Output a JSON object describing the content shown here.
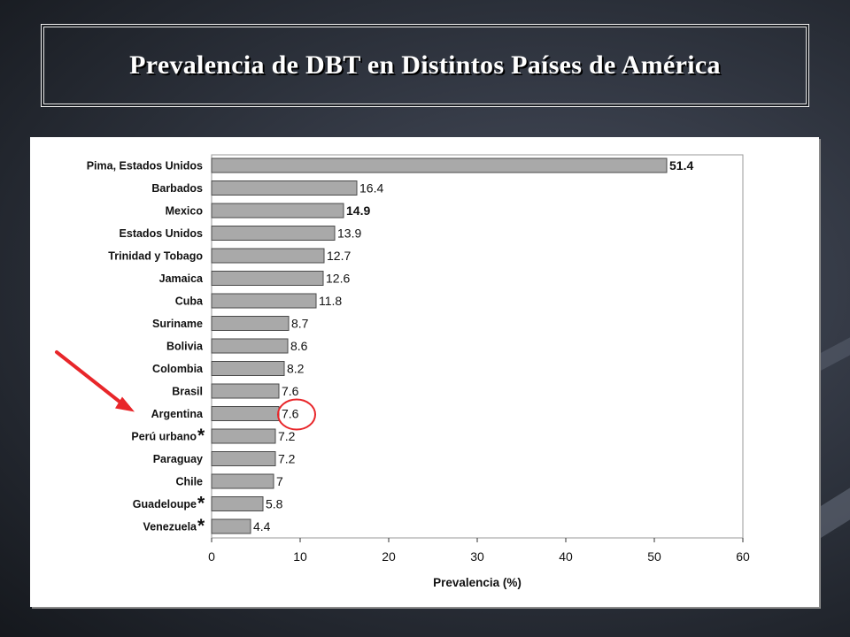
{
  "slide": {
    "title": "Prevalencia de DBT en Distintos Países de América"
  },
  "colors": {
    "bar_fill": "#a9a9a9",
    "bar_stroke": "#4a4a4a",
    "highlight": "#e8262a"
  },
  "chart_data": {
    "type": "bar",
    "orientation": "horizontal",
    "title": "",
    "xlabel": "Prevalencia (%)",
    "ylabel": "",
    "xlim": [
      0,
      60
    ],
    "xticks": [
      0,
      10,
      20,
      30,
      40,
      50,
      60
    ],
    "grid": false,
    "legend": "none",
    "categories": [
      "Pima, Estados Unidos",
      "Barbados",
      "Mexico",
      "Estados Unidos",
      "Trinidad y Tobago",
      "Jamaica",
      "Cuba",
      "Suriname",
      "Bolivia",
      "Colombia",
      "Brasil",
      "Argentina",
      "Perú urbano",
      "Paraguay",
      "Chile",
      "Guadeloupe",
      "Venezuela"
    ],
    "values": [
      51.4,
      16.4,
      14.9,
      13.9,
      12.7,
      12.6,
      11.8,
      8.7,
      8.6,
      8.2,
      7.6,
      7.6,
      7.2,
      7.2,
      7,
      5.8,
      4.4
    ],
    "value_labels": [
      "51.4",
      "16.4",
      "14.9",
      "13.9",
      "12.7",
      "12.6",
      "11.8",
      "8.7",
      "8.6",
      "8.2",
      "7.6",
      "7.6",
      "7.2",
      "7.2",
      "7",
      "5.8",
      "4.4"
    ],
    "bold_value_labels": [
      "Pima, Estados Unidos",
      "Mexico"
    ],
    "starred": [
      "Perú urbano",
      "Guadeloupe",
      "Venezuela"
    ],
    "star_symbol": "*",
    "highlighted": "Argentina",
    "annotations": [
      "red arrow pointing at Argentina",
      "red circle around Argentina value"
    ]
  }
}
